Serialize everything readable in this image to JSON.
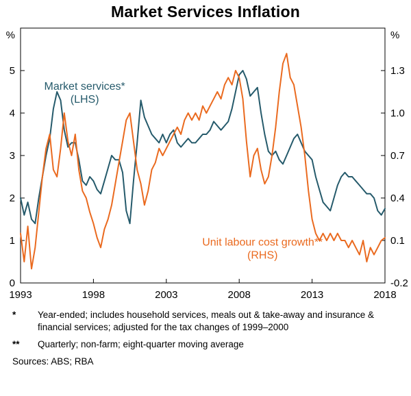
{
  "chart_data": {
    "type": "line",
    "title": "Market Services Inflation",
    "x_range": [
      1993,
      2018
    ],
    "x_ticks": [
      1993,
      1998,
      2003,
      2008,
      2013,
      2018
    ],
    "left_axis": {
      "label": "%",
      "min": 0,
      "max": 6,
      "ticks": [
        0,
        1,
        2,
        3,
        4,
        5
      ],
      "tick_labels": [
        "0",
        "1",
        "2",
        "3",
        "4",
        "5"
      ]
    },
    "right_axis": {
      "label": "%",
      "min": -0.2,
      "max": 1.6,
      "ticks": [
        -0.2,
        0.1,
        0.4,
        0.7,
        1.0,
        1.3
      ],
      "tick_labels": [
        "-0.2",
        "0.1",
        "0.4",
        "0.7",
        "1.0",
        "1.3"
      ]
    },
    "grid": false,
    "legend_position": "inline-annotations",
    "x": [
      1993,
      1993.25,
      1993.5,
      1993.75,
      1994,
      1994.25,
      1994.5,
      1994.75,
      1995,
      1995.25,
      1995.5,
      1995.75,
      1996,
      1996.25,
      1996.5,
      1996.75,
      1997,
      1997.25,
      1997.5,
      1997.75,
      1998,
      1998.25,
      1998.5,
      1998.75,
      1999,
      1999.25,
      1999.5,
      1999.75,
      2000,
      2000.25,
      2000.5,
      2000.75,
      2001,
      2001.25,
      2001.5,
      2001.75,
      2002,
      2002.25,
      2002.5,
      2002.75,
      2003,
      2003.25,
      2003.5,
      2003.75,
      2004,
      2004.25,
      2004.5,
      2004.75,
      2005,
      2005.25,
      2005.5,
      2005.75,
      2006,
      2006.25,
      2006.5,
      2006.75,
      2007,
      2007.25,
      2007.5,
      2007.75,
      2008,
      2008.25,
      2008.5,
      2008.75,
      2009,
      2009.25,
      2009.5,
      2009.75,
      2010,
      2010.25,
      2010.5,
      2010.75,
      2011,
      2011.25,
      2011.5,
      2011.75,
      2012,
      2012.25,
      2012.5,
      2012.75,
      2013,
      2013.25,
      2013.5,
      2013.75,
      2014,
      2014.25,
      2014.5,
      2014.75,
      2015,
      2015.25,
      2015.5,
      2015.75,
      2016,
      2016.25,
      2016.5,
      2016.75,
      2017,
      2017.25,
      2017.5,
      2017.75,
      2018
    ],
    "series": [
      {
        "name": "Market services (LHS)",
        "axis": "left",
        "color": "#255a6b",
        "values": [
          2.0,
          1.6,
          1.9,
          1.5,
          1.4,
          2.0,
          2.5,
          3.0,
          3.4,
          4.1,
          4.5,
          4.3,
          3.6,
          3.2,
          3.3,
          3.3,
          2.9,
          2.4,
          2.3,
          2.5,
          2.4,
          2.2,
          2.1,
          2.4,
          2.7,
          3.0,
          2.9,
          2.9,
          2.6,
          1.7,
          1.4,
          2.4,
          3.3,
          4.3,
          3.9,
          3.7,
          3.5,
          3.4,
          3.3,
          3.5,
          3.3,
          3.5,
          3.6,
          3.3,
          3.2,
          3.3,
          3.4,
          3.3,
          3.3,
          3.4,
          3.5,
          3.5,
          3.6,
          3.8,
          3.7,
          3.6,
          3.7,
          3.8,
          4.1,
          4.5,
          4.9,
          5.0,
          4.8,
          4.4,
          4.5,
          4.6,
          4.0,
          3.5,
          3.1,
          3.0,
          3.1,
          2.9,
          2.8,
          3.0,
          3.2,
          3.4,
          3.5,
          3.3,
          3.1,
          3.0,
          2.9,
          2.5,
          2.2,
          1.9,
          1.8,
          1.7,
          2.0,
          2.3,
          2.5,
          2.6,
          2.5,
          2.5,
          2.4,
          2.3,
          2.2,
          2.1,
          2.1,
          2.0,
          1.7,
          1.6,
          1.75
        ]
      },
      {
        "name": "Unit labour cost growth (RHS)",
        "axis": "right",
        "color": "#ea6a1f",
        "values": [
          0.15,
          -0.05,
          0.2,
          -0.1,
          0.05,
          0.3,
          0.55,
          0.75,
          0.85,
          0.6,
          0.55,
          0.75,
          1.0,
          0.8,
          0.7,
          0.85,
          0.6,
          0.45,
          0.4,
          0.3,
          0.22,
          0.12,
          0.05,
          0.18,
          0.25,
          0.35,
          0.5,
          0.65,
          0.8,
          0.95,
          1.0,
          0.8,
          0.6,
          0.5,
          0.35,
          0.45,
          0.6,
          0.65,
          0.75,
          0.7,
          0.75,
          0.8,
          0.85,
          0.9,
          0.85,
          0.95,
          1.0,
          0.95,
          1.0,
          0.95,
          1.05,
          1.0,
          1.05,
          1.1,
          1.15,
          1.1,
          1.2,
          1.25,
          1.2,
          1.3,
          1.25,
          1.1,
          0.8,
          0.55,
          0.7,
          0.75,
          0.6,
          0.5,
          0.55,
          0.7,
          0.9,
          1.15,
          1.35,
          1.42,
          1.25,
          1.2,
          1.05,
          0.9,
          0.7,
          0.45,
          0.25,
          0.15,
          0.1,
          0.15,
          0.1,
          0.15,
          0.1,
          0.15,
          0.1,
          0.1,
          0.05,
          0.1,
          0.05,
          0.0,
          0.1,
          -0.05,
          0.05,
          0.0,
          0.05,
          0.1,
          0.12
        ]
      }
    ],
    "annotations": [
      {
        "lines": [
          "Market services*",
          "(LHS)"
        ],
        "x": 1997.4,
        "y": 4.55,
        "axis": "left",
        "color": "#255a6b"
      },
      {
        "lines": [
          "Unit labour cost growth**",
          "(RHS)"
        ],
        "x": 2009.6,
        "y": 0.88,
        "axis": "left",
        "color": "#ea6a1f"
      }
    ]
  },
  "footnotes": [
    {
      "marker": "*",
      "text": "Year-ended; includes household services, meals out & take-away and insurance & financial services; adjusted for the tax changes of 1999–2000"
    },
    {
      "marker": "**",
      "text": "Quarterly; non-farm; eight-quarter moving average"
    }
  ],
  "sources": "Sources: ABS; RBA"
}
